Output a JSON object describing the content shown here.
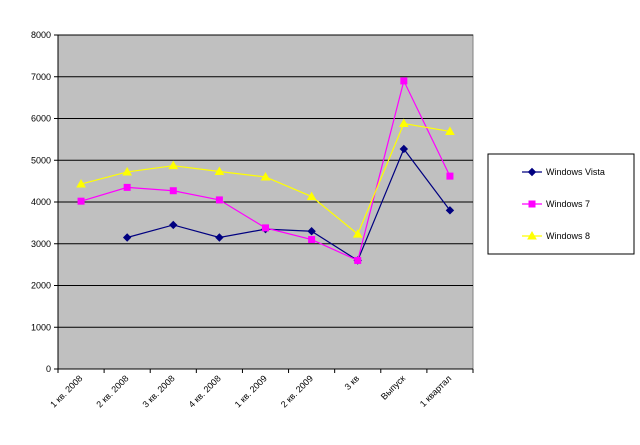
{
  "chart_data": {
    "type": "line",
    "categories": [
      "1 кв. 2008",
      "2 кв. 2008",
      "3 кв. 2008",
      "4 кв. 2008",
      "1 кв. 2009",
      "2 кв. 2009",
      "3 кв",
      "Выпуск",
      "1 квартал"
    ],
    "ylim": [
      0,
      8000
    ],
    "yticks": [
      0,
      1000,
      2000,
      3000,
      4000,
      5000,
      6000,
      7000,
      8000
    ],
    "grid": true,
    "legend_position": "right",
    "plot_background": "#c0c0c0",
    "series": [
      {
        "name": "Windows Vista",
        "color": "#000080",
        "marker": "diamond",
        "values": [
          null,
          3150,
          3450,
          3150,
          3350,
          3300,
          2600,
          5270,
          3800
        ]
      },
      {
        "name": "Windows 7",
        "color": "#ff00ff",
        "marker": "square",
        "values": [
          4020,
          4350,
          4270,
          4050,
          3380,
          3100,
          2600,
          6900,
          4620
        ]
      },
      {
        "name": "Windows 8",
        "color": "#ffff00",
        "marker": "triangle",
        "values": [
          4430,
          4720,
          4870,
          4730,
          4600,
          4130,
          3230,
          5880,
          5690
        ]
      }
    ]
  }
}
